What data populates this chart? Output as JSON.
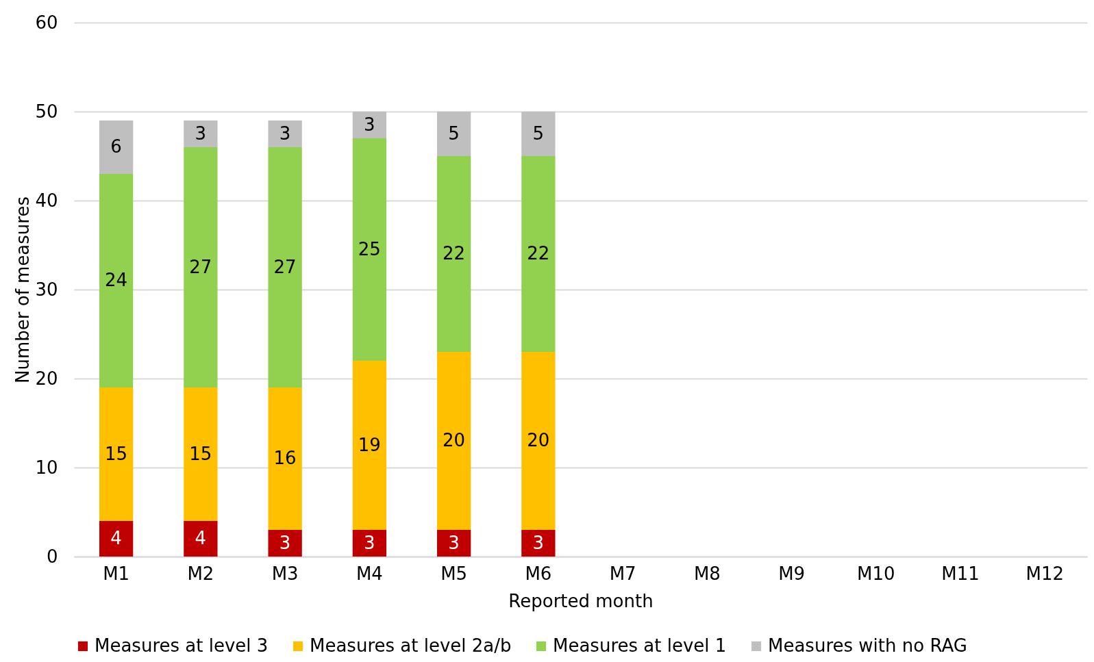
{
  "chart_data": {
    "type": "bar",
    "stacked": true,
    "xlabel": "Reported month",
    "ylabel": "Number of measures",
    "categories": [
      "M1",
      "M2",
      "M3",
      "M4",
      "M5",
      "M6",
      "M7",
      "M8",
      "M9",
      "M10",
      "M11",
      "M12"
    ],
    "series": [
      {
        "name": "Measures at level 3",
        "color": "#c00000",
        "values": [
          4,
          4,
          3,
          3,
          3,
          3,
          null,
          null,
          null,
          null,
          null,
          null
        ]
      },
      {
        "name": "Measures at level 2a/b",
        "color": "#ffc000",
        "values": [
          15,
          15,
          16,
          19,
          20,
          20,
          null,
          null,
          null,
          null,
          null,
          null
        ]
      },
      {
        "name": "Measures at level 1",
        "color": "#92d050",
        "values": [
          24,
          27,
          27,
          25,
          22,
          22,
          null,
          null,
          null,
          null,
          null,
          null
        ]
      },
      {
        "name": "Measures with no RAG",
        "color": "#bfbfbf",
        "values": [
          6,
          3,
          3,
          3,
          5,
          5,
          null,
          null,
          null,
          null,
          null,
          null
        ]
      }
    ],
    "ylim": [
      0,
      60
    ],
    "yticks": [
      0,
      10,
      20,
      30,
      40,
      50,
      60
    ],
    "grid": "y",
    "legend": "bottom",
    "data_labels": true
  }
}
